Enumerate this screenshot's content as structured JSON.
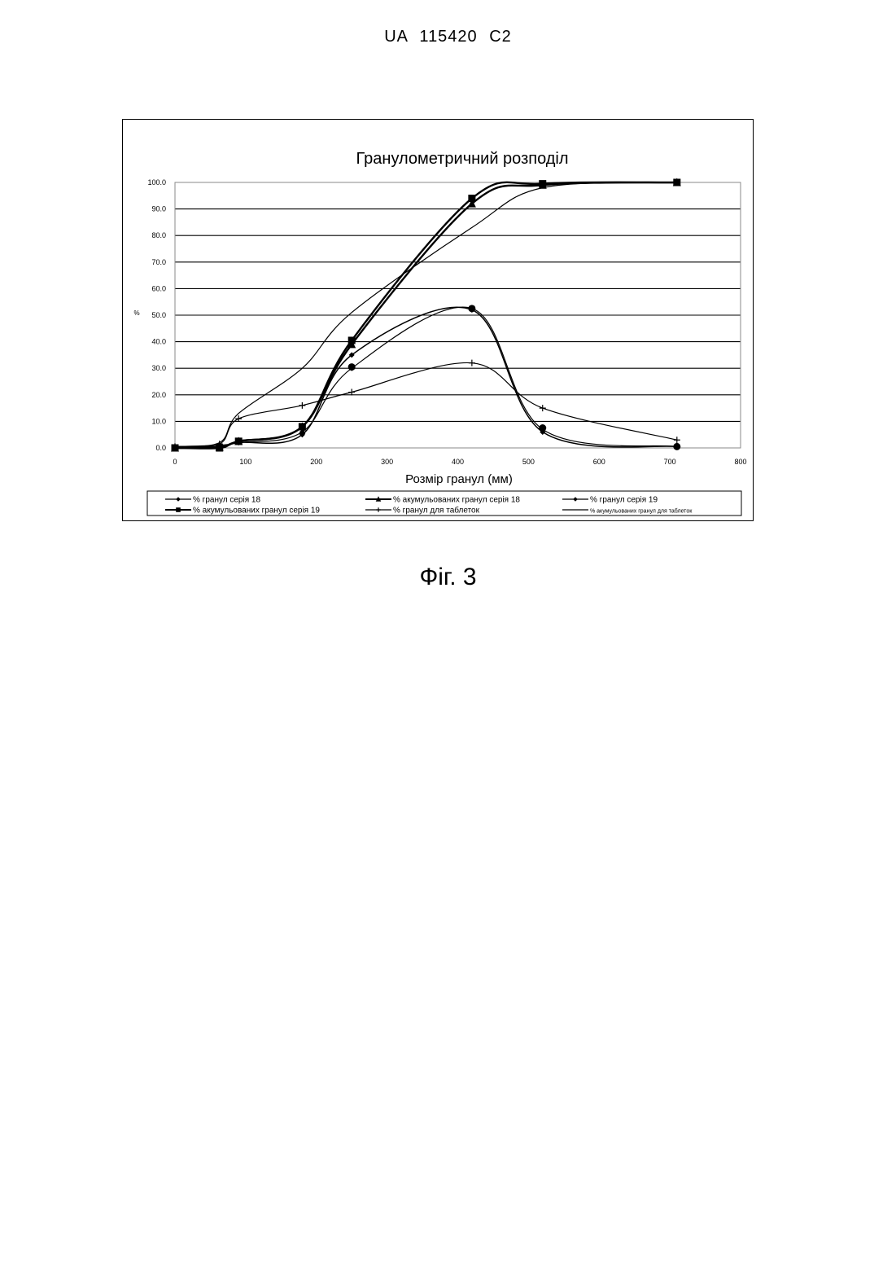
{
  "header": {
    "doc_number": "UA   115420   C2"
  },
  "caption": "Фіг. 3",
  "chart_data": {
    "type": "line",
    "title": "Гранулометричний розподіл",
    "xlabel": "Розмір гранул (мм)",
    "ylabel": "%",
    "xlim": [
      0,
      800
    ],
    "ylim": [
      0,
      100
    ],
    "x_ticks": [
      "0",
      "100",
      "200",
      "300",
      "400",
      "500",
      "600",
      "700",
      "800"
    ],
    "y_ticks": [
      "0.0",
      "10.0",
      "20.0",
      "30.0",
      "40.0",
      "50.0",
      "60.0",
      "70.0",
      "80.0",
      "90.0",
      "100.0"
    ],
    "grid": "horizontal",
    "legend_position": "bottom",
    "series": [
      {
        "name": "% гранул серія 18",
        "marker": "diamond",
        "width": 1.5,
        "points": [
          [
            0,
            0.5
          ],
          [
            63,
            0.5
          ],
          [
            90,
            2
          ],
          [
            180,
            5
          ],
          [
            250,
            35
          ],
          [
            420,
            52
          ],
          [
            520,
            6
          ],
          [
            710,
            0.5
          ]
        ]
      },
      {
        "name": "% акумульованих гранул серія 18",
        "marker": "triangle",
        "width": 2.4,
        "points": [
          [
            0,
            0
          ],
          [
            63,
            0.3
          ],
          [
            90,
            2.5
          ],
          [
            180,
            8
          ],
          [
            250,
            39
          ],
          [
            420,
            92
          ],
          [
            520,
            99
          ],
          [
            710,
            100
          ]
        ]
      },
      {
        "name": "% гранул серія 19",
        "marker": "diamond",
        "width": 1.2,
        "points": [
          [
            0,
            0.5
          ],
          [
            63,
            1
          ],
          [
            90,
            2
          ],
          [
            180,
            6
          ],
          [
            250,
            30
          ],
          [
            420,
            52.5
          ],
          [
            520,
            7
          ],
          [
            710,
            0.5
          ]
        ]
      },
      {
        "name": "% акумульованих гранул серія 19",
        "marker": "square",
        "width": 2.4,
        "points": [
          [
            0,
            0
          ],
          [
            63,
            0
          ],
          [
            90,
            2.5
          ],
          [
            180,
            8
          ],
          [
            250,
            40.5
          ],
          [
            420,
            94
          ],
          [
            520,
            99.5
          ],
          [
            710,
            100
          ]
        ]
      },
      {
        "name": "% гранул для таблеток",
        "marker": "plus",
        "width": 1.2,
        "points": [
          [
            0,
            0.5
          ],
          [
            63,
            1.5
          ],
          [
            90,
            11
          ],
          [
            180,
            16
          ],
          [
            250,
            21
          ],
          [
            420,
            32
          ],
          [
            520,
            15
          ],
          [
            710,
            3
          ]
        ]
      },
      {
        "name": "% акумульованих гранул для таблеток",
        "marker": "none",
        "width": 1.2,
        "points": [
          [
            0,
            0.5
          ],
          [
            63,
            2
          ],
          [
            90,
            13
          ],
          [
            180,
            30
          ],
          [
            250,
            51
          ],
          [
            420,
            83
          ],
          [
            520,
            98
          ],
          [
            710,
            100
          ]
        ]
      }
    ],
    "markers": [
      {
        "series": 0,
        "x": 180,
        "y": 5.5,
        "shape": "diamond"
      },
      {
        "series": 2,
        "x": 250,
        "y": 30.5,
        "shape": "circle"
      },
      {
        "series": 2,
        "x": 420,
        "y": 52.5,
        "shape": "circle"
      },
      {
        "series": 2,
        "x": 520,
        "y": 7.5,
        "shape": "circle"
      },
      {
        "series": 2,
        "x": 710,
        "y": 0.5,
        "shape": "circle"
      }
    ]
  }
}
